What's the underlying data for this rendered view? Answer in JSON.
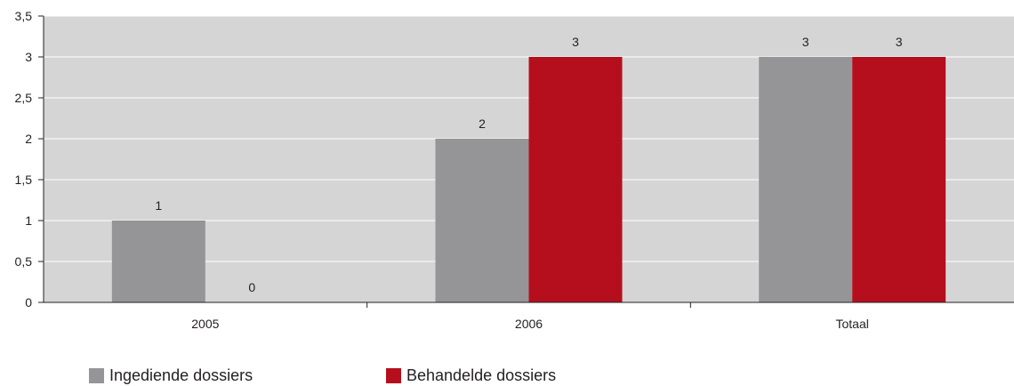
{
  "chart_data": {
    "type": "bar",
    "categories": [
      "2005",
      "2006",
      "Totaal"
    ],
    "series": [
      {
        "name": "Ingediende dossiers",
        "values": [
          1,
          2,
          3
        ],
        "color": "#959597"
      },
      {
        "name": "Behandelde dossiers",
        "values": [
          0,
          3,
          3
        ],
        "color": "#b50f1e"
      }
    ],
    "data_labels": [
      [
        "1",
        "2",
        "3"
      ],
      [
        "0",
        "3",
        "3"
      ]
    ],
    "ylim": [
      0,
      3.5
    ],
    "y_ticks": [
      "0",
      "0,5",
      "1",
      "1,5",
      "2",
      "2,5",
      "3",
      "3,5"
    ],
    "grid": true,
    "plot_background": "#d5d5d6",
    "legend_position": "bottom-left"
  }
}
